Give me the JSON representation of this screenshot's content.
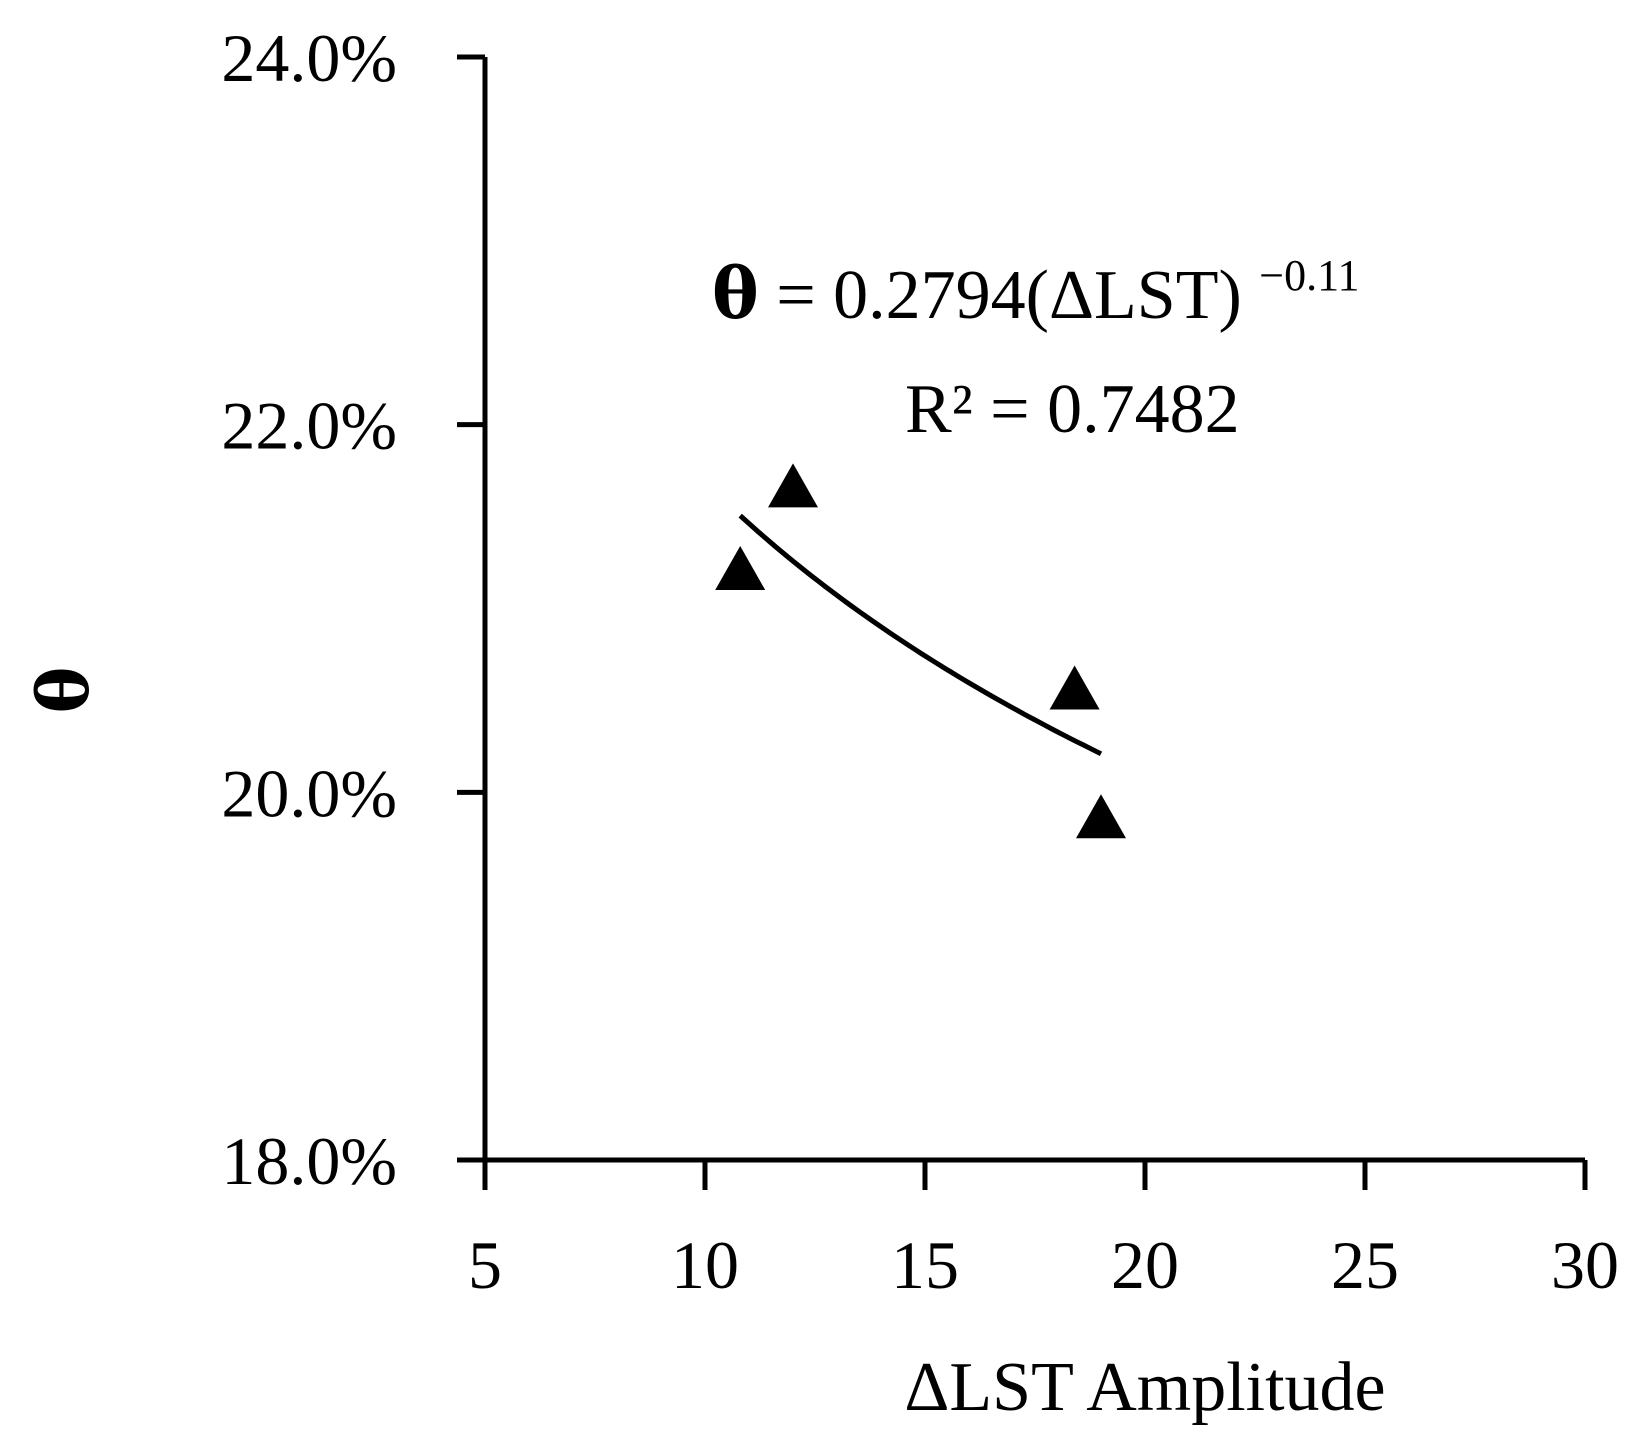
{
  "chart_data": {
    "type": "scatter",
    "title": "",
    "xlabel": "ΔLST Amplitude",
    "ylabel": "θ",
    "xlim": [
      5,
      30
    ],
    "ylim": [
      0.18,
      0.24
    ],
    "x_ticks": [
      5,
      10,
      15,
      20,
      25,
      30
    ],
    "x_tick_labels": [
      "5",
      "10",
      "15",
      "20",
      "25",
      "30"
    ],
    "y_ticks": [
      0.18,
      0.2,
      0.22,
      0.24
    ],
    "y_tick_labels": [
      "18.0%",
      "20.0%",
      "22.0%",
      "24.0%"
    ],
    "grid": false,
    "legend": "none",
    "series": [
      {
        "marker": "triangle",
        "color": "#000000",
        "x": [
          10.8,
          12.0,
          18.4,
          19.0
        ],
        "y": [
          0.2122,
          0.2167,
          0.2057,
          0.1987
        ]
      }
    ],
    "trendline": {
      "type": "power",
      "coefficient": 0.2794,
      "exponent": -0.11,
      "x_range": [
        10.8,
        19.0
      ]
    },
    "annotations": {
      "equation_theta": "θ",
      "equation_body": " = 0.2794(ΔLST) ",
      "equation_exponent": "−0.11",
      "r_squared": "R² = 0.7482"
    }
  }
}
